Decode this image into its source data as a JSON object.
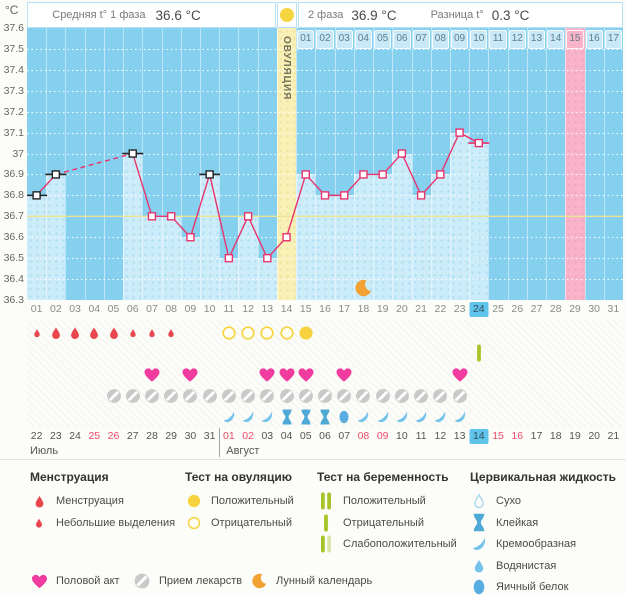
{
  "header": {
    "unit": "°C",
    "avg_label": "Средняя t° 1 фаза",
    "avg_value": "36.6 °C",
    "phase2_label": "2 фаза",
    "phase2_value": "36.9 °C",
    "diff_label": "Разница t°",
    "diff_value": "0.3 °C"
  },
  "chart_data": {
    "type": "line",
    "unit": "°C",
    "ylim": [
      36.3,
      37.6
    ],
    "ytick_labels": [
      "37.6",
      "37.5",
      "37.4",
      "37.3",
      "37.2",
      "37.1",
      "37",
      "36.9",
      "36.8",
      "36.7",
      "36.6",
      "36.5",
      "36.4",
      "36.3"
    ],
    "x_days": 31,
    "coverline": 36.7,
    "ovulation": {
      "day": 14,
      "label": "ОВУЛЯЦИЯ"
    },
    "expected_period_day": 29,
    "dpo_row": {
      "start_day": 15,
      "count": 17,
      "pink_index": 15
    },
    "highlighted_cycle_day": 24,
    "moon_day": 18,
    "temps": [
      {
        "day": 1,
        "temp": 36.8,
        "flag": "black"
      },
      {
        "day": 2,
        "temp": 36.9,
        "flag": "black"
      },
      {
        "day": 6,
        "temp": 37.0,
        "flag": "black"
      },
      {
        "day": 7,
        "temp": 36.7
      },
      {
        "day": 8,
        "temp": 36.7
      },
      {
        "day": 9,
        "temp": 36.6
      },
      {
        "day": 10,
        "temp": 36.9,
        "flag": "black"
      },
      {
        "day": 11,
        "temp": 36.5
      },
      {
        "day": 12,
        "temp": 36.7
      },
      {
        "day": 13,
        "temp": 36.5
      },
      {
        "day": 14,
        "temp": 36.6
      },
      {
        "day": 15,
        "temp": 36.9
      },
      {
        "day": 16,
        "temp": 36.8
      },
      {
        "day": 17,
        "temp": 36.8
      },
      {
        "day": 18,
        "temp": 36.9
      },
      {
        "day": 19,
        "temp": 36.9
      },
      {
        "day": 20,
        "temp": 37.0
      },
      {
        "day": 21,
        "temp": 36.8
      },
      {
        "day": 22,
        "temp": 36.9
      },
      {
        "day": 23,
        "temp": 37.1
      },
      {
        "day": 24,
        "temp": 37.05,
        "flag": "pink"
      }
    ]
  },
  "symbols": {
    "menstruation": [
      {
        "day": 1,
        "size": "small"
      },
      {
        "day": 2,
        "size": "large"
      },
      {
        "day": 3,
        "size": "large"
      },
      {
        "day": 4,
        "size": "large"
      },
      {
        "day": 5,
        "size": "large"
      },
      {
        "day": 6,
        "size": "small"
      },
      {
        "day": 7,
        "size": "small"
      },
      {
        "day": 8,
        "size": "small"
      }
    ],
    "ovulation_tests": [
      {
        "day": 11,
        "result": "negative"
      },
      {
        "day": 12,
        "result": "negative"
      },
      {
        "day": 13,
        "result": "negative"
      },
      {
        "day": 14,
        "result": "negative"
      },
      {
        "day": 15,
        "result": "positive"
      }
    ],
    "pregnancy_tests": [
      {
        "day": 24,
        "result": "negative"
      }
    ],
    "intercourse_days": [
      7,
      9,
      13,
      14,
      15,
      17,
      23
    ],
    "medication_days": [
      5,
      6,
      7,
      8,
      9,
      10,
      11,
      12,
      13,
      14,
      15,
      16,
      17,
      18,
      19,
      20,
      21,
      22,
      23
    ],
    "cervical": [
      {
        "day": 11,
        "type": "creamy"
      },
      {
        "day": 12,
        "type": "creamy"
      },
      {
        "day": 13,
        "type": "creamy"
      },
      {
        "day": 14,
        "type": "sticky"
      },
      {
        "day": 15,
        "type": "sticky"
      },
      {
        "day": 16,
        "type": "sticky"
      },
      {
        "day": 17,
        "type": "eggwhite"
      },
      {
        "day": 18,
        "type": "creamy"
      },
      {
        "day": 19,
        "type": "creamy"
      },
      {
        "day": 20,
        "type": "creamy"
      },
      {
        "day": 21,
        "type": "creamy"
      },
      {
        "day": 22,
        "type": "creamy"
      },
      {
        "day": 23,
        "type": "creamy"
      }
    ]
  },
  "calendar": {
    "months": [
      {
        "name": "Июль",
        "start_date": 22,
        "end_date": 31,
        "start_day": 1,
        "red_dates": [
          25,
          26
        ]
      },
      {
        "name": "Август",
        "start_date": 1,
        "end_date": 21,
        "start_day": 11,
        "red_dates": [
          1,
          2,
          8,
          9,
          15,
          16
        ],
        "today_date": 14
      }
    ]
  },
  "legend": {
    "sections": [
      {
        "title": "Менструация",
        "items": [
          {
            "icon": "drop-large-red",
            "label": "Менструация"
          },
          {
            "icon": "drop-small-red",
            "label": "Небольшие выделения"
          }
        ]
      },
      {
        "title": "Тест на овуляцию",
        "items": [
          {
            "icon": "circle-filled-yellow",
            "label": "Положительный"
          },
          {
            "icon": "circle-outline-yellow",
            "label": "Отрицательный"
          }
        ]
      },
      {
        "title": "Тест на беременность",
        "items": [
          {
            "icon": "bars-two-green",
            "label": "Положительный"
          },
          {
            "icon": "bar-one-green",
            "label": "Отрицательный"
          },
          {
            "icon": "bars-weak-green",
            "label": "Слабоположительный"
          }
        ]
      },
      {
        "title": "Цервикальная жидкость",
        "items": [
          {
            "icon": "cf-dry",
            "label": "Сухо"
          },
          {
            "icon": "cf-sticky",
            "label": "Клейкая"
          },
          {
            "icon": "cf-creamy",
            "label": "Кремообразная"
          },
          {
            "icon": "cf-watery",
            "label": "Водянистая"
          },
          {
            "icon": "cf-eggwhite",
            "label": "Яичный белок"
          }
        ]
      }
    ],
    "bottom": [
      {
        "icon": "heart-pink",
        "label": "Половой акт"
      },
      {
        "icon": "pill-gray",
        "label": "Прием лекарств"
      },
      {
        "icon": "moon-orange",
        "label": "Лунный календарь"
      }
    ]
  },
  "colors": {
    "accent_line": "#e8336d",
    "chart_bg": "#86d0ef",
    "bar_fill": "#cdecfa",
    "bar_dot": "#a9ddf3",
    "coverline": "#ede395",
    "ovulation_band": "#f8f0b6",
    "ovulation_circle": "#f5d540",
    "period_band": "#f8b3c8",
    "dpo_cell_bg": "#c9e9f8",
    "highlight_bg": "#5fc3eb",
    "date_red": "#ef4a6b",
    "menstruation_red": "#e8474f",
    "heart_pink": "#f03c9e",
    "pill_gray": "#c9c9c9",
    "pregnancy_green": "#a6c428",
    "pregnancy_green_light": "#d9e7a6",
    "moon_orange": "#f2a233",
    "cf_blue": "#74c3ea",
    "cf_blue_dark": "#4fa9d6",
    "cf_blue_deep": "#58aee0",
    "cf_outline": "#a9daf2",
    "test_yellow": "#f5d23e",
    "marker_black": "#222222"
  }
}
